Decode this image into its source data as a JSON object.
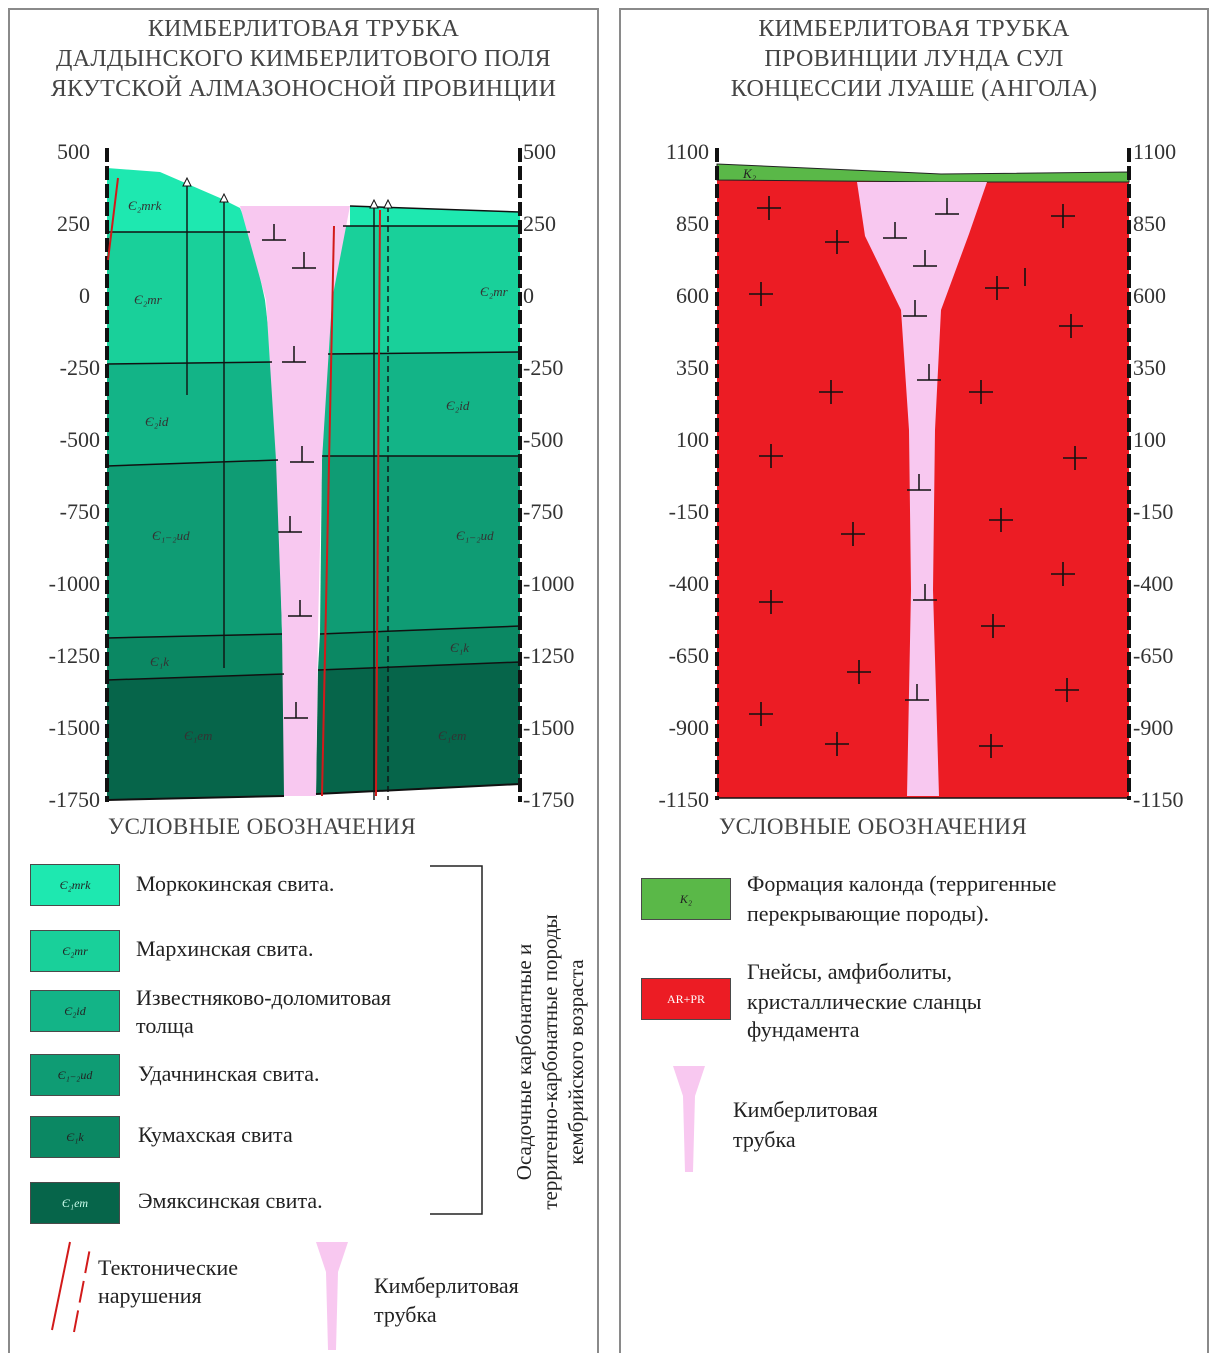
{
  "left": {
    "title_lines": [
      "КИМБЕРЛИТОВАЯ ТРУБКА",
      "ДАЛДЫНСКОГО КИМБЕРЛИТОВОГО ПОЛЯ",
      "ЯКУТСКОЙ АЛМАЗОНОСНОЙ ПРОВИНЦИИ"
    ],
    "axis_ticks": [
      "500",
      "250",
      "0",
      "-250",
      "-500",
      "-750",
      "-1000",
      "-1250",
      "-1500",
      "-1750"
    ],
    "layer_labels": [
      "Є₂mrk",
      "Є₂mr",
      "Є₂id",
      "Є₁₋₂ud",
      "Є₁k",
      "Є₁em"
    ],
    "legend_header": "УСЛОВНЫЕ ОБОЗНАЧЕНИЯ",
    "legend": [
      {
        "code": "Є₂mrk",
        "text": [
          "Моркокинская свита."
        ],
        "color": "#1ee8b0"
      },
      {
        "code": "Є₂mr",
        "text": [
          "Мархинская свита."
        ],
        "color": "#19d09a"
      },
      {
        "code": "Є₂id",
        "text": [
          "Известняково-доломитовая",
          "толща"
        ],
        "color": "#13b487"
      },
      {
        "code": "Є₁₋₂ud",
        "text": [
          "Удачнинская свита."
        ],
        "color": "#0f9c74"
      },
      {
        "code": "Є₁k",
        "text": [
          "Кумахская свита"
        ],
        "color": "#0b8863"
      },
      {
        "code": "Є₁em",
        "text": [
          "Эмяксинская свита."
        ],
        "color": "#06654a"
      }
    ],
    "bracket_note": [
      "Осадочные карбонатные и",
      "терригенно-карбонатные породы",
      "кембрийского возраста"
    ],
    "faults_label": [
      "Тектонические",
      "нарушения"
    ],
    "pipe_label": [
      "Кимберлитовая",
      "трубка"
    ]
  },
  "right": {
    "title_lines": [
      "КИМБЕРЛИТОВАЯ ТРУБКА",
      "ПРОВИНЦИИ ЛУНДА СУЛ",
      "КОНЦЕССИИ ЛУАШЕ (АНГОЛА)"
    ],
    "axis_ticks": [
      "1100",
      "850",
      "600",
      "350",
      "100",
      "-150",
      "-400",
      "-650",
      "-900",
      "-1150"
    ],
    "cover_label": "K₂",
    "legend_header": "УСЛОВНЫЕ ОБОЗНАЧЕНИЯ",
    "legend": [
      {
        "code": "K₂",
        "text": [
          "Формация калонда (терригенные",
          "перекрывающие породы)."
        ],
        "color": "#5ab848"
      },
      {
        "code": "AR+PR",
        "text": [
          "Гнейсы, амфиболиты,",
          "кристаллические сланцы",
          "фундамента"
        ],
        "color": "#ec1c24"
      }
    ],
    "pipe_label": [
      "Кимберлитовая",
      "трубка"
    ]
  },
  "colors": {
    "pipe": "#f8c8f0",
    "basement": "#ec1c24",
    "cover": "#5ab848",
    "fault": "#d21a1a"
  }
}
